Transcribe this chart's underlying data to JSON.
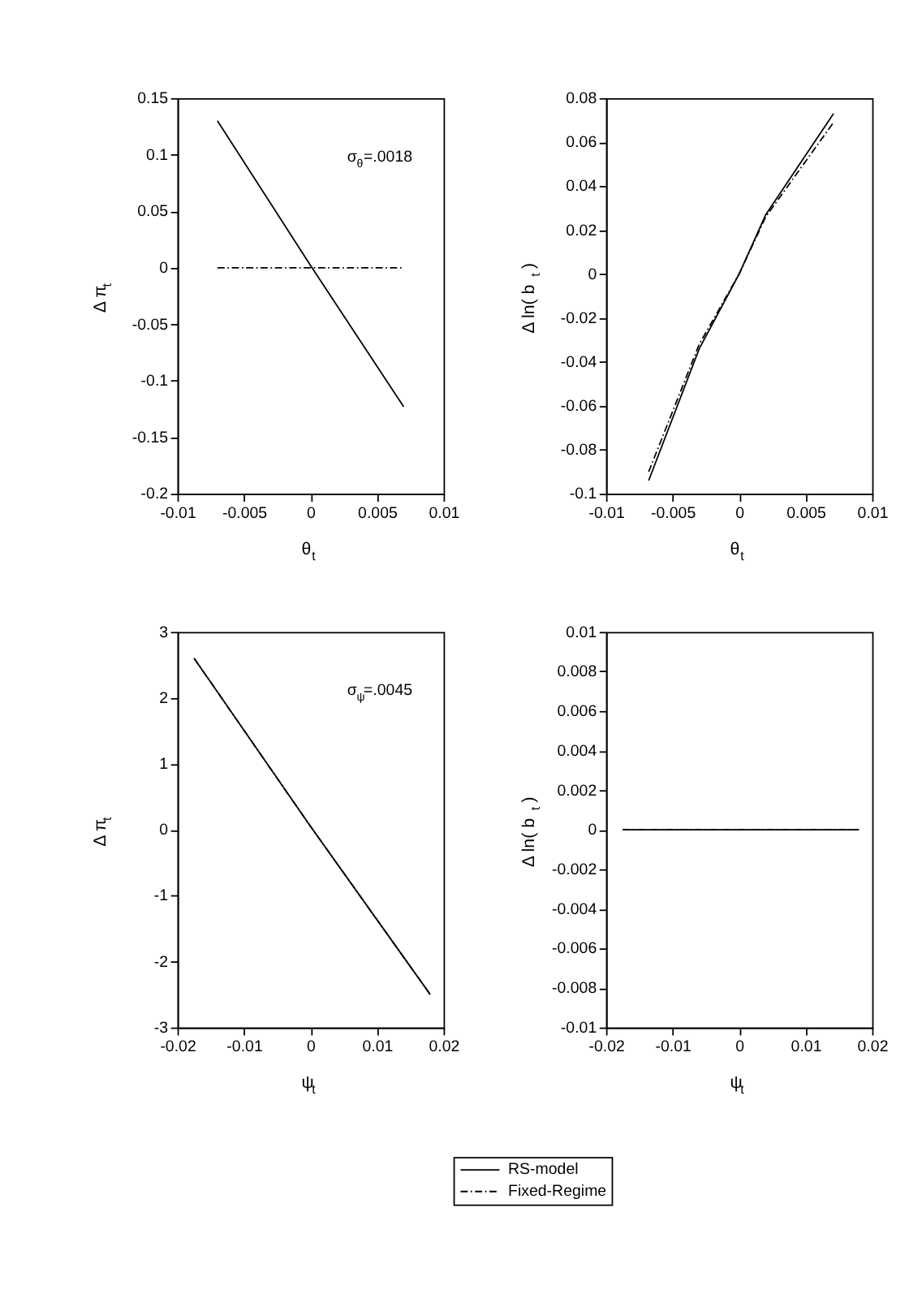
{
  "chart_data": [
    {
      "type": "line",
      "xlabel": "θ$_{t}$",
      "ylabel": "Δ π$_{t}$",
      "xlim": [
        -0.01,
        0.01
      ],
      "xticks": [
        -0.01,
        -0.005,
        0,
        0.005,
        0.01
      ],
      "ylim": [
        -0.2,
        0.15
      ],
      "yticks": [
        -0.2,
        -0.15,
        -0.1,
        -0.05,
        0,
        0.05,
        0.1,
        0.15
      ],
      "grid": false,
      "annotations": [
        "σ$_{θ}$=.0018"
      ],
      "series": [
        {
          "color": "#000000",
          "line_style": "solid",
          "x": [
            -0.007,
            0,
            0.007
          ],
          "values": [
            0.13,
            0.002,
            -0.123
          ]
        },
        {
          "color": "#000000",
          "line_style": "dashed",
          "x": [
            -0.007,
            0.007
          ],
          "values": [
            0,
            0
          ]
        }
      ]
    },
    {
      "type": "line",
      "xlabel": "θ$_{t}$",
      "ylabel": "Δ ln( b$_{t}$ )",
      "xlim": [
        -0.01,
        0.01
      ],
      "xticks": [
        -0.01,
        -0.005,
        0,
        0.005,
        0.01
      ],
      "ylim": [
        -0.1,
        0.08
      ],
      "yticks": [
        -0.1,
        -0.08,
        -0.06,
        -0.04,
        -0.02,
        0,
        0.02,
        0.04,
        0.06,
        0.08
      ],
      "grid": false,
      "series": [
        {
          "color": "#000000",
          "line_style": "solid",
          "x": [
            -0.0068,
            -0.003,
            0,
            0.002,
            0.0071
          ],
          "values": [
            -0.094,
            -0.034,
            0,
            0.027,
            0.073
          ]
        },
        {
          "color": "#000000",
          "line_style": "dashed",
          "x": [
            -0.0068,
            -0.003,
            0,
            0.002,
            0.0071
          ],
          "values": [
            -0.09,
            -0.032,
            0,
            0.026,
            0.069
          ]
        }
      ]
    },
    {
      "type": "line",
      "xlabel": "ψ$_{t}$",
      "ylabel": "Δ π$_{t}$",
      "xlim": [
        -0.02,
        0.02
      ],
      "xticks": [
        -0.02,
        -0.01,
        0,
        0.01,
        0.02
      ],
      "ylim": [
        -3,
        3
      ],
      "yticks": [
        -3,
        -2,
        -1,
        0,
        1,
        2,
        3
      ],
      "grid": false,
      "annotations": [
        "σ$_{ψ}$=.0045"
      ],
      "series": [
        {
          "color": "#000000",
          "line_style": "solid",
          "x": [
            -0.0175,
            0,
            0.018
          ],
          "values": [
            2.6,
            0.05,
            -2.5
          ]
        },
        {
          "color": "#000000",
          "line_style": "dashed",
          "x": [
            -0.0175,
            0,
            0.018
          ],
          "values": [
            2.6,
            0.05,
            -2.5
          ]
        }
      ]
    },
    {
      "type": "line",
      "xlabel": "ψ$_{t}$",
      "ylabel": "Δ ln( b$_{t}$ )",
      "xlim": [
        -0.02,
        0.02
      ],
      "xticks": [
        -0.02,
        -0.01,
        0,
        0.01,
        0.02
      ],
      "ylim": [
        -0.01,
        0.01
      ],
      "yticks": [
        -0.01,
        -0.008,
        -0.006,
        -0.004,
        -0.002,
        0,
        0.002,
        0.004,
        0.006,
        0.008,
        0.01
      ],
      "grid": false,
      "legend": "bottom",
      "series": [
        {
          "name": "RS-model",
          "color": "#000000",
          "line_style": "solid",
          "x": [
            -0.0175,
            0.018
          ],
          "values": [
            0,
            0
          ]
        },
        {
          "name": "Fixed-Regime",
          "color": "#000000",
          "line_style": "dashed",
          "x": [
            -0.0175,
            0.018
          ],
          "values": [
            0,
            0
          ]
        }
      ]
    }
  ]
}
